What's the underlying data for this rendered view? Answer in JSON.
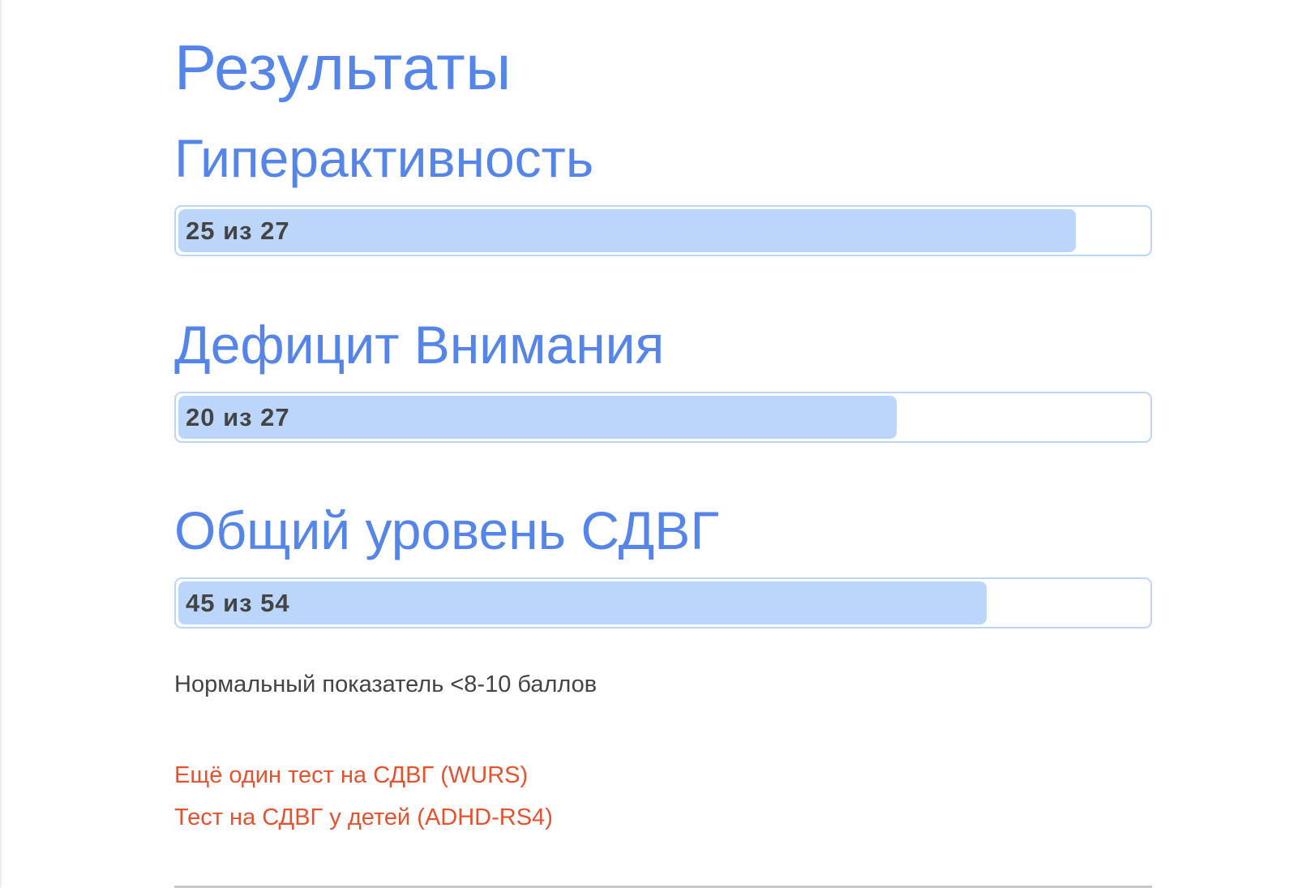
{
  "title": "Результаты",
  "sections": [
    {
      "heading": "Гиперактивность",
      "label": "25 из 27",
      "value": 25,
      "max": 27
    },
    {
      "heading": "Дефицит Внимания",
      "label": "20 из 27",
      "value": 20,
      "max": 27
    },
    {
      "heading": "Общий уровень СДВГ",
      "label": "45 из 54",
      "value": 45,
      "max": 54
    }
  ],
  "note": "Нормальный показатель <8-10 баллов",
  "links": [
    "Ещё один тест на СДВГ (WURS)",
    "Тест на СДВГ у детей (ADHD-RS4)"
  ],
  "colors": {
    "heading": "#5585e9",
    "bar_fill": "#bbd6fa",
    "link": "#e5522f"
  }
}
